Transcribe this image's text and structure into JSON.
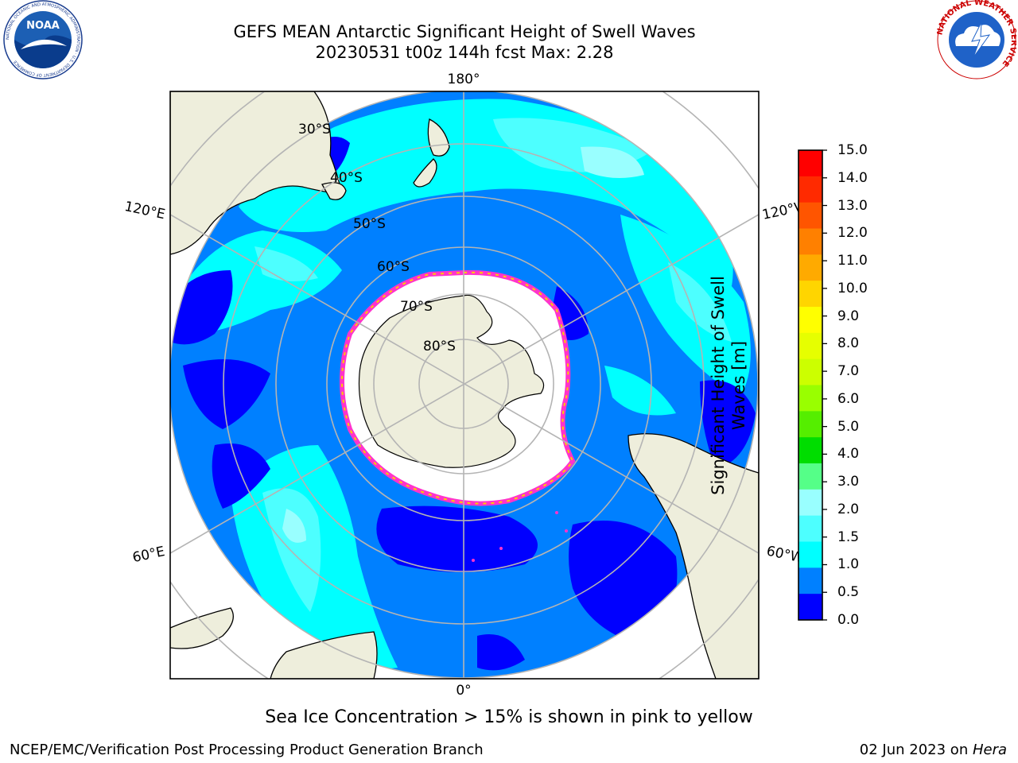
{
  "title_line1": "GEFS MEAN Antarctic Significant Height of Swell Waves",
  "title_line2": "20230531 t00z 144h fcst   Max: 2.28",
  "logos": {
    "left": "NOAA",
    "left_ring_text": "NATIONAL OCEANIC AND ATMOSPHERIC ADMINISTRATION · U.S. DEPARTMENT OF COMMERCE",
    "right_ring_text": "NATIONAL WEATHER SERVICE"
  },
  "map": {
    "projection": "south-polar-stereographic",
    "lon_labels": {
      "top": "180°",
      "bottom": "0°",
      "upper_left": "120°E",
      "upper_right": "120°W",
      "lower_left": "60°E",
      "lower_right": "60°W"
    },
    "lat_labels": [
      "30°S",
      "40°S",
      "50°S",
      "60°S",
      "70°S",
      "80°S"
    ],
    "colors": {
      "land": "#eeeedc",
      "ice_edge": "#ff33cc",
      "wave_0_0_5": "#0000ff",
      "wave_0_5_1_0": "#0080ff",
      "wave_1_0_1_5": "#00ffff",
      "wave_1_5_2_0": "#4dffff",
      "wave_2_0_2_5": "#99ffff"
    }
  },
  "colorbar": {
    "label": "Significant Height of Swell Waves [m]",
    "label_line1": "Significant Height of Swell",
    "label_line2": "Waves [m]",
    "ticks": [
      "15.0",
      "14.0",
      "13.0",
      "12.0",
      "11.0",
      "10.0",
      "9.0",
      "8.0",
      "7.0",
      "6.0",
      "5.0",
      "4.0",
      "3.0",
      "2.0",
      "1.5",
      "1.0",
      "0.5",
      "0.0"
    ],
    "bands": [
      "#ff0000",
      "#ff2a00",
      "#ff5500",
      "#ff8000",
      "#ffaa00",
      "#ffd500",
      "#ffff00",
      "#e6ff00",
      "#ccff00",
      "#99ff00",
      "#55ee00",
      "#00dd00",
      "#55ff88",
      "#99ffff",
      "#4dffff",
      "#00ffff",
      "#0080ff",
      "#0000ff"
    ]
  },
  "caption": "Sea Ice Concentration > 15% is shown in pink to yellow",
  "footer_left": "NCEP/EMC/Verification Post Processing Product Generation Branch",
  "footer_right_date": "02 Jun 2023 on ",
  "footer_right_host": "Hera"
}
